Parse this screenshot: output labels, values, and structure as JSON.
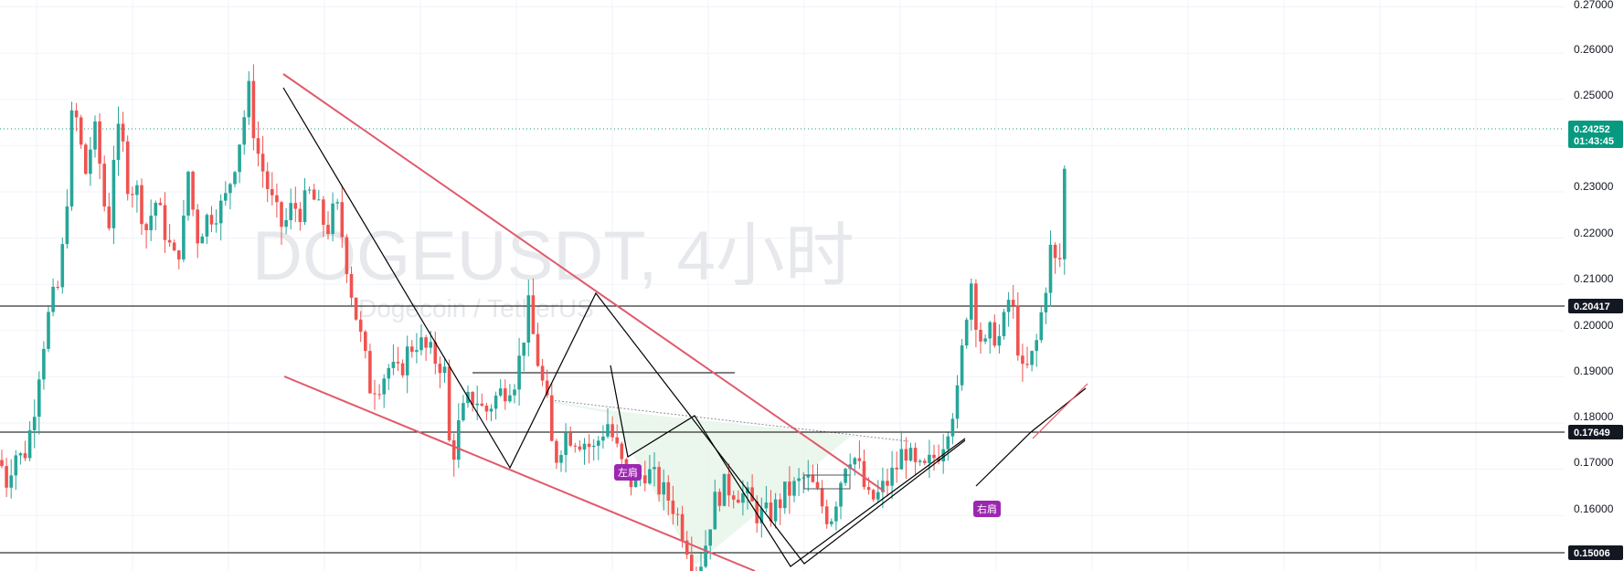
{
  "watermark": {
    "symbol": "DOGEUSDT, 4小时",
    "pair_name": "Dogecoin / TetherUS"
  },
  "y_axis": {
    "ticks": [
      "0.27000",
      "0.26000",
      "0.25000",
      "0.23000",
      "0.22000",
      "0.21000",
      "0.20000",
      "0.19000",
      "0.18000",
      "0.17000",
      "0.16000"
    ]
  },
  "price_badges": {
    "last_price": "0.24252",
    "countdown": "01:43:45",
    "level_1": "0.20417",
    "level_2": "0.17649",
    "level_3": "0.15006"
  },
  "pattern_labels": {
    "left_shoulder": "左肩",
    "right_shoulder": "右肩"
  },
  "colors": {
    "up": "#26a69a",
    "down": "#ef5350",
    "trendline": "#e05a6a",
    "zigzag": "#000000",
    "pattern_fill": "#e9f5ea",
    "pattern_line": "#7b7f8a",
    "label_bg": "#9c27b0",
    "last_price_bg": "#089981",
    "level_line": "#000000",
    "level_badge_bg": "#131722",
    "grid": "#f0f3fa"
  },
  "chart_data": {
    "type": "candlestick",
    "symbol": "DOGEUSDT",
    "interval": "4小时",
    "y_range": [
      0.148,
      0.2715
    ],
    "last_price": 0.24252,
    "horizontal_levels": [
      0.20417,
      0.17649,
      0.15006
    ],
    "close_path": [
      [
        0,
        0.172
      ],
      [
        8,
        0.167
      ],
      [
        15,
        0.174
      ],
      [
        25,
        0.172
      ],
      [
        35,
        0.18
      ],
      [
        45,
        0.195
      ],
      [
        55,
        0.205
      ],
      [
        65,
        0.21
      ],
      [
        72,
        0.225
      ],
      [
        80,
        0.25
      ],
      [
        88,
        0.24
      ],
      [
        95,
        0.233
      ],
      [
        102,
        0.245
      ],
      [
        110,
        0.235
      ],
      [
        118,
        0.22
      ],
      [
        125,
        0.24
      ],
      [
        132,
        0.243
      ],
      [
        140,
        0.232
      ],
      [
        150,
        0.23
      ],
      [
        160,
        0.222
      ],
      [
        170,
        0.228
      ],
      [
        180,
        0.222
      ],
      [
        190,
        0.215
      ],
      [
        200,
        0.22
      ],
      [
        205,
        0.236
      ],
      [
        215,
        0.22
      ],
      [
        225,
        0.224
      ],
      [
        235,
        0.226
      ],
      [
        245,
        0.227
      ],
      [
        255,
        0.235
      ],
      [
        265,
        0.244
      ],
      [
        272,
        0.252
      ],
      [
        280,
        0.24
      ],
      [
        290,
        0.233
      ],
      [
        300,
        0.226
      ],
      [
        310,
        0.222
      ],
      [
        320,
        0.227
      ],
      [
        330,
        0.226
      ],
      [
        340,
        0.23
      ],
      [
        350,
        0.225
      ],
      [
        358,
        0.222
      ],
      [
        368,
        0.227
      ],
      [
        375,
        0.22
      ],
      [
        385,
        0.208
      ],
      [
        395,
        0.198
      ],
      [
        405,
        0.188
      ],
      [
        415,
        0.189
      ],
      [
        425,
        0.192
      ],
      [
        435,
        0.19
      ],
      [
        445,
        0.195
      ],
      [
        455,
        0.198
      ],
      [
        465,
        0.196
      ],
      [
        475,
        0.194
      ],
      [
        482,
        0.193
      ],
      [
        488,
        0.19
      ],
      [
        493,
        0.17
      ],
      [
        500,
        0.178
      ],
      [
        510,
        0.184
      ],
      [
        520,
        0.186
      ],
      [
        530,
        0.182
      ],
      [
        540,
        0.185
      ],
      [
        550,
        0.187
      ],
      [
        558,
        0.189
      ],
      [
        565,
        0.19
      ],
      [
        572,
        0.198
      ],
      [
        578,
        0.205
      ],
      [
        585,
        0.197
      ],
      [
        592,
        0.19
      ],
      [
        600,
        0.182
      ],
      [
        606,
        0.171
      ],
      [
        612,
        0.175
      ],
      [
        620,
        0.178
      ],
      [
        630,
        0.177
      ],
      [
        640,
        0.176
      ],
      [
        650,
        0.174
      ],
      [
        658,
        0.178
      ],
      [
        665,
        0.18
      ],
      [
        675,
        0.174
      ],
      [
        685,
        0.168
      ],
      [
        695,
        0.167
      ],
      [
        705,
        0.17
      ],
      [
        715,
        0.168
      ],
      [
        725,
        0.165
      ],
      [
        735,
        0.163
      ],
      [
        745,
        0.158
      ],
      [
        755,
        0.152
      ],
      [
        762,
        0.148
      ],
      [
        770,
        0.152
      ],
      [
        780,
        0.162
      ],
      [
        790,
        0.166
      ],
      [
        800,
        0.166
      ],
      [
        810,
        0.165
      ],
      [
        820,
        0.163
      ],
      [
        830,
        0.16
      ],
      [
        840,
        0.16
      ],
      [
        850,
        0.162
      ],
      [
        860,
        0.165
      ],
      [
        870,
        0.166
      ],
      [
        880,
        0.168
      ],
      [
        890,
        0.166
      ],
      [
        900,
        0.162
      ],
      [
        908,
        0.159
      ],
      [
        915,
        0.164
      ],
      [
        925,
        0.172
      ],
      [
        932,
        0.174
      ],
      [
        940,
        0.17
      ],
      [
        950,
        0.163
      ],
      [
        960,
        0.164
      ],
      [
        970,
        0.167
      ],
      [
        980,
        0.17
      ],
      [
        990,
        0.175
      ],
      [
        1000,
        0.17
      ],
      [
        1010,
        0.169
      ],
      [
        1020,
        0.172
      ],
      [
        1030,
        0.175
      ],
      [
        1040,
        0.182
      ],
      [
        1048,
        0.186
      ],
      [
        1055,
        0.2
      ],
      [
        1062,
        0.212
      ],
      [
        1070,
        0.2
      ],
      [
        1078,
        0.196
      ],
      [
        1085,
        0.2
      ],
      [
        1095,
        0.198
      ],
      [
        1105,
        0.208
      ],
      [
        1112,
        0.2
      ],
      [
        1118,
        0.19
      ],
      [
        1126,
        0.192
      ],
      [
        1135,
        0.198
      ],
      [
        1142,
        0.207
      ],
      [
        1150,
        0.218
      ],
      [
        1158,
        0.212
      ],
      [
        1163,
        0.222
      ],
      [
        1166,
        0.243
      ]
    ]
  }
}
